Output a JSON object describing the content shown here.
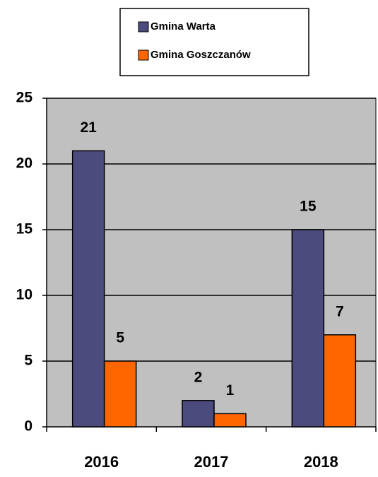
{
  "chart_data": {
    "type": "bar",
    "categories": [
      "2016",
      "2017",
      "2018"
    ],
    "series": [
      {
        "name": "Gmina Warta",
        "color": "#4b4b7d",
        "values": [
          21,
          2,
          15
        ]
      },
      {
        "name": "Gmina Goszczanów",
        "color": "#ff6600",
        "values": [
          5,
          1,
          7
        ]
      }
    ],
    "ylim": [
      0,
      25
    ],
    "yticks": [
      0,
      5,
      10,
      15,
      20,
      25
    ],
    "grid": true,
    "legend": "top"
  }
}
